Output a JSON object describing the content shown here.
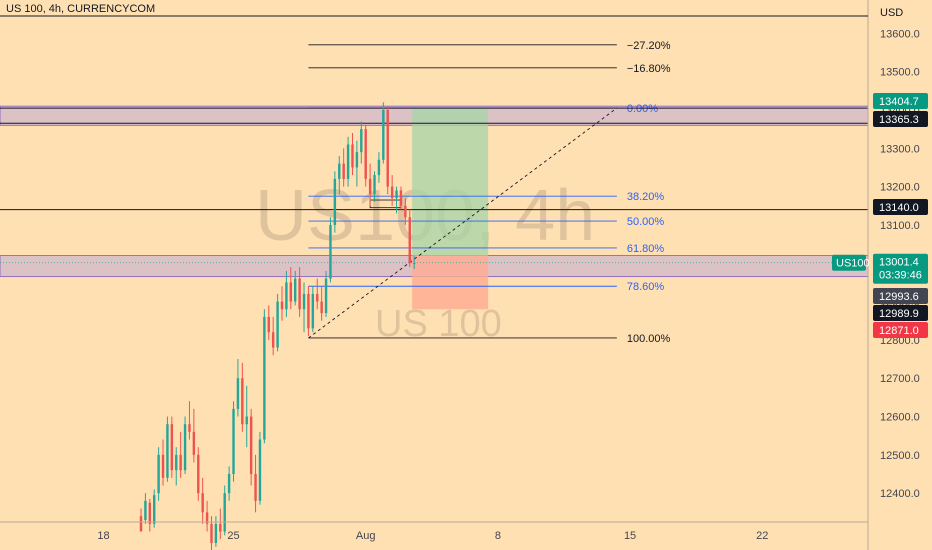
{
  "header": {
    "symbol_title": "US 100, 4h, CURRENCYCOM"
  },
  "watermark": {
    "primary": "US100, 4h",
    "secondary": "US 100"
  },
  "colors": {
    "background": "#FFE0B2",
    "up": "#26A69A",
    "down": "#EF5350",
    "fib_blue": "#2962FF",
    "zone": "#B39DDB",
    "profit": "#A5D6A7",
    "loss": "#FFAB91"
  },
  "chart_data": {
    "type": "candlestick",
    "currency": "USD",
    "y_range": [
      12330,
      13640
    ],
    "y_ticks": [
      {
        "value": 12400,
        "label": "12400.0"
      },
      {
        "value": 12500,
        "label": "12500.0"
      },
      {
        "value": 12600,
        "label": "12600.0"
      },
      {
        "value": 12700,
        "label": "12700.0"
      },
      {
        "value": 12800,
        "label": "12800.0"
      },
      {
        "value": 12900,
        "label": "12900.0"
      },
      {
        "value": 13000,
        "label": "13000.0"
      },
      {
        "value": 13100,
        "label": "13100.0"
      },
      {
        "value": 13200,
        "label": "13200.0"
      },
      {
        "value": 13300,
        "label": "13300.0"
      },
      {
        "value": 13400,
        "label": "13400.0"
      },
      {
        "value": 13500,
        "label": "13500.0"
      },
      {
        "value": 13600,
        "label": "13600.0"
      }
    ],
    "x_ticks": [
      {
        "index": 1.5,
        "label": "18"
      },
      {
        "index": 31,
        "label": "25"
      },
      {
        "index": 61,
        "label": "Aug"
      },
      {
        "index": 91,
        "label": "8"
      },
      {
        "index": 121,
        "label": "15"
      },
      {
        "index": 151,
        "label": "22"
      }
    ],
    "x_index_range": [
      -22,
      175
    ],
    "candles": [
      [
        12340,
        12360,
        12310,
        12300
      ],
      [
        12330,
        12400,
        12320,
        12380
      ],
      [
        12375,
        12385,
        12300,
        12320
      ],
      [
        12320,
        12410,
        12310,
        12395
      ],
      [
        12400,
        12520,
        12380,
        12500
      ],
      [
        12500,
        12540,
        12420,
        12440
      ],
      [
        12440,
        12600,
        12430,
        12580
      ],
      [
        12580,
        12600,
        12440,
        12460
      ],
      [
        12460,
        12520,
        12420,
        12500
      ],
      [
        12500,
        12560,
        12440,
        12460
      ],
      [
        12460,
        12600,
        12450,
        12580
      ],
      [
        12580,
        12640,
        12540,
        12560
      ],
      [
        12560,
        12620,
        12480,
        12500
      ],
      [
        12500,
        12520,
        12380,
        12400
      ],
      [
        12400,
        12440,
        12320,
        12350
      ],
      [
        12350,
        12380,
        12300,
        12320
      ],
      [
        12320,
        12340,
        12250,
        12270
      ],
      [
        12270,
        12340,
        12260,
        12320
      ],
      [
        12320,
        12360,
        12280,
        12300
      ],
      [
        12300,
        12420,
        12290,
        12400
      ],
      [
        12400,
        12470,
        12380,
        12450
      ],
      [
        12450,
        12640,
        12430,
        12620
      ],
      [
        12620,
        12750,
        12600,
        12700
      ],
      [
        12700,
        12740,
        12560,
        12580
      ],
      [
        12580,
        12680,
        12520,
        12600
      ],
      [
        12600,
        12620,
        12420,
        12450
      ],
      [
        12450,
        12500,
        12350,
        12380
      ],
      [
        12380,
        12560,
        12370,
        12540
      ],
      [
        12540,
        12880,
        12530,
        12860
      ],
      [
        12860,
        12890,
        12800,
        12820
      ],
      [
        12820,
        12860,
        12760,
        12780
      ],
      [
        12780,
        12920,
        12770,
        12900
      ],
      [
        12900,
        12940,
        12850,
        12880
      ],
      [
        12880,
        12980,
        12860,
        12950
      ],
      [
        12950,
        12990,
        12880,
        12900
      ],
      [
        12900,
        12980,
        12890,
        12960
      ],
      [
        12960,
        12990,
        12860,
        12880
      ],
      [
        12880,
        12950,
        12820,
        12920
      ],
      [
        12920,
        12940,
        12810,
        12830
      ],
      [
        12830,
        12940,
        12820,
        12920
      ],
      [
        12920,
        12960,
        12880,
        12900
      ],
      [
        12900,
        12940,
        12850,
        12870
      ],
      [
        12870,
        12980,
        12860,
        12960
      ],
      [
        12960,
        13120,
        12950,
        13100
      ],
      [
        13100,
        13240,
        13080,
        13220
      ],
      [
        13220,
        13280,
        13180,
        13260
      ],
      [
        13260,
        13300,
        13200,
        13220
      ],
      [
        13220,
        13330,
        13200,
        13310
      ],
      [
        13310,
        13340,
        13230,
        13250
      ],
      [
        13250,
        13320,
        13200,
        13290
      ],
      [
        13290,
        13370,
        13260,
        13350
      ],
      [
        13350,
        13360,
        13200,
        13220
      ],
      [
        13220,
        13260,
        13150,
        13180
      ],
      [
        13180,
        13240,
        13160,
        13230
      ],
      [
        13230,
        13290,
        13210,
        13270
      ],
      [
        13270,
        13420,
        13260,
        13400
      ],
      [
        13400,
        13410,
        13180,
        13200
      ],
      [
        13200,
        13230,
        13150,
        13170
      ],
      [
        13170,
        13200,
        13130,
        13190
      ],
      [
        13190,
        13200,
        13140,
        13150
      ],
      [
        13150,
        13170,
        13100,
        13120
      ],
      [
        13120,
        13140,
        12990,
        13000
      ],
      [
        13000,
        13020,
        12985,
        13001
      ]
    ],
    "horizontal_levels": [
      {
        "value": 13404.7,
        "label": "13404.7",
        "badge_color": "#089981"
      },
      {
        "value": 13365.3,
        "label": "13365.3",
        "badge_color": "#131722"
      },
      {
        "value": 13140.0,
        "label": "13140.0",
        "badge_color": "#131722"
      },
      {
        "value": 12993.6,
        "label": "12993.6",
        "badge_color": "#434651"
      },
      {
        "value": 12989.9,
        "label": "12989.9",
        "badge_color": "#131722"
      },
      {
        "value": 12871.0,
        "label": "12871.0",
        "badge_color": "#F23645"
      }
    ],
    "last_price": {
      "symbol": "US100",
      "value": 13001.4,
      "label": "13001.4",
      "countdown": "03:39:46"
    },
    "zones": [
      {
        "from": 13360,
        "to": 13410
      },
      {
        "from": 12965,
        "to": 13020
      }
    ],
    "fib_levels": [
      {
        "value": 13570,
        "label": "−27.20%",
        "color": "#131722"
      },
      {
        "value": 13510,
        "label": "−16.80%",
        "color": "#131722"
      },
      {
        "value": 13405,
        "label": "0.00%",
        "color": "#2962FF"
      },
      {
        "value": 13175,
        "label": "38.20%",
        "color": "#2962FF"
      },
      {
        "value": 13110,
        "label": "50.00%",
        "color": "#2962FF"
      },
      {
        "value": 13040,
        "label": "61.80%",
        "color": "#2962FF"
      },
      {
        "value": 12940,
        "label": "78.60%",
        "color": "#2962FF"
      },
      {
        "value": 12805,
        "label": "100.00%",
        "color": "#131722"
      }
    ],
    "position": {
      "entry": 13020,
      "target": 13405,
      "stop": 12880
    },
    "rectangles": [
      {
        "from": 13145,
        "to": 13165
      }
    ]
  }
}
